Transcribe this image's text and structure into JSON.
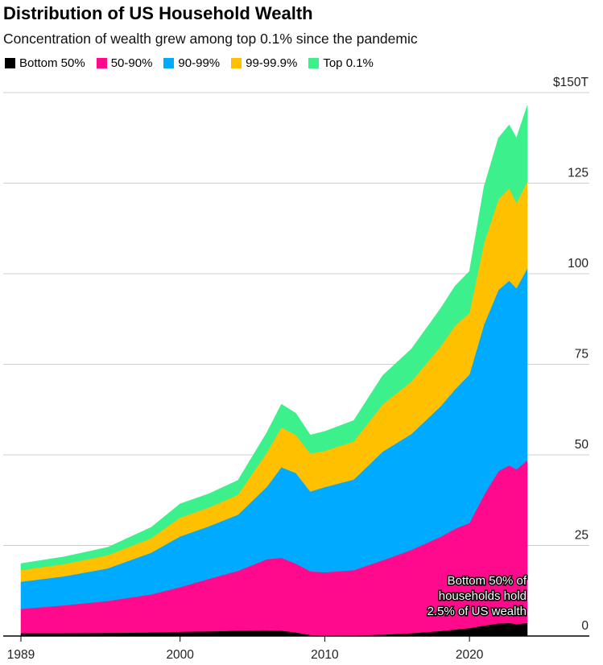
{
  "title": "Distribution of US Household Wealth",
  "subtitle": "Concentration of wealth grew among top 0.1% since the pandemic",
  "legend": [
    {
      "label": "Bottom 50%",
      "color": "#000000"
    },
    {
      "label": "50-90%",
      "color": "#ff0a8c"
    },
    {
      "label": "90-99%",
      "color": "#00aaff"
    },
    {
      "label": "99-99.9%",
      "color": "#ffc000"
    },
    {
      "label": "Top 0.1%",
      "color": "#3cf08c"
    }
  ],
  "annotation": [
    "Bottom 50% of",
    "households hold",
    "2.5% of US wealth"
  ],
  "chart_data": {
    "type": "area",
    "stacked": true,
    "x_unit": "year",
    "y_unit": "$ trillions",
    "xlim": [
      1989,
      2024.5
    ],
    "ylim": [
      0,
      150
    ],
    "x_ticks": [
      1989,
      2000,
      2010,
      2020
    ],
    "x_tick_labels": [
      "1989",
      "2000",
      "2010",
      "2020"
    ],
    "y_ticks": [
      0,
      25,
      50,
      75,
      100,
      125,
      150
    ],
    "y_tick_labels": [
      "0",
      "25",
      "50",
      "75",
      "100",
      "125",
      "$150T"
    ],
    "grid": true,
    "legend_position": "top-left",
    "x": [
      1989,
      1992,
      1995,
      1998,
      2000,
      2002,
      2004,
      2006,
      2007,
      2008,
      2009,
      2010,
      2012,
      2014,
      2016,
      2018,
      2019,
      2020,
      2021,
      2022,
      2022.75,
      2023.25,
      2024
    ],
    "series": [
      {
        "name": "Bottom 50%",
        "color": "#000000",
        "values": [
          0.8,
          0.8,
          0.9,
          1.0,
          1.2,
          1.3,
          1.5,
          1.6,
          1.5,
          1.0,
          0.3,
          0.1,
          0.2,
          0.4,
          0.8,
          1.4,
          1.8,
          2.2,
          2.9,
          3.5,
          3.6,
          3.3,
          3.6
        ]
      },
      {
        "name": "50-90%",
        "color": "#ff0a8c",
        "values": [
          6.7,
          7.7,
          8.8,
          10.5,
          12.3,
          14.5,
          16.5,
          19.6,
          20.1,
          19.0,
          17.6,
          17.5,
          18.0,
          20.5,
          23.0,
          26.0,
          27.8,
          29.0,
          36.0,
          42.0,
          43.5,
          42.7,
          44.9
        ]
      },
      {
        "name": "90-99%",
        "color": "#00aaff",
        "values": [
          7.5,
          8.0,
          9.0,
          11.5,
          14.0,
          14.5,
          15.5,
          20.0,
          25.0,
          25.0,
          22.0,
          23.5,
          25.0,
          30.0,
          32.0,
          36.0,
          38.5,
          41.0,
          47.0,
          50.0,
          51.0,
          50.0,
          53.0
        ]
      },
      {
        "name": "99-99.9%",
        "color": "#ffc000",
        "values": [
          3.2,
          3.4,
          3.6,
          4.0,
          5.2,
          5.2,
          5.5,
          9.5,
          11.0,
          10.5,
          10.5,
          10.0,
          10.5,
          13.0,
          14.5,
          16.5,
          17.5,
          17.0,
          22.5,
          25.0,
          25.5,
          23.5,
          24.0
        ]
      },
      {
        "name": "Top 0.1%",
        "color": "#3cf08c",
        "values": [
          1.8,
          2.0,
          2.2,
          3.0,
          3.8,
          3.8,
          4.0,
          5.5,
          6.4,
          6.0,
          5.1,
          5.4,
          5.8,
          8.0,
          9.0,
          10.5,
          11.0,
          11.5,
          15.5,
          17.0,
          17.5,
          18.0,
          21.0
        ]
      }
    ]
  }
}
